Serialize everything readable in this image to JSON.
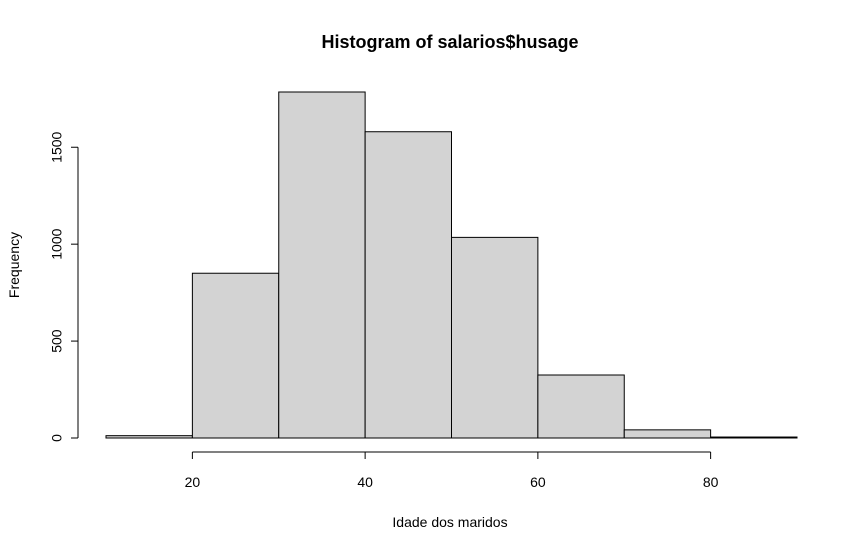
{
  "chart_data": {
    "type": "bar",
    "title": "Histogram of salarios$husage",
    "xlabel": "Idade dos maridos",
    "ylabel": "Frequency",
    "bins": [
      {
        "start": 10,
        "end": 20,
        "value": 12
      },
      {
        "start": 20,
        "end": 30,
        "value": 850
      },
      {
        "start": 30,
        "end": 40,
        "value": 1785
      },
      {
        "start": 40,
        "end": 50,
        "value": 1580
      },
      {
        "start": 50,
        "end": 60,
        "value": 1035
      },
      {
        "start": 60,
        "end": 70,
        "value": 325
      },
      {
        "start": 70,
        "end": 80,
        "value": 42
      },
      {
        "start": 80,
        "end": 90,
        "value": 5
      }
    ],
    "xlim": [
      10,
      90
    ],
    "ylim": [
      0,
      1785
    ],
    "x_ticks": [
      20,
      40,
      60,
      80
    ],
    "x_tick_labels": [
      "20",
      "40",
      "60",
      "80"
    ],
    "y_ticks": [
      0,
      500,
      1000,
      1500
    ],
    "y_tick_labels": [
      "0",
      "500",
      "1000",
      "1500"
    ],
    "grid": false,
    "colors": {
      "bar_fill": "#d3d3d3",
      "bar_stroke": "#000000"
    }
  }
}
